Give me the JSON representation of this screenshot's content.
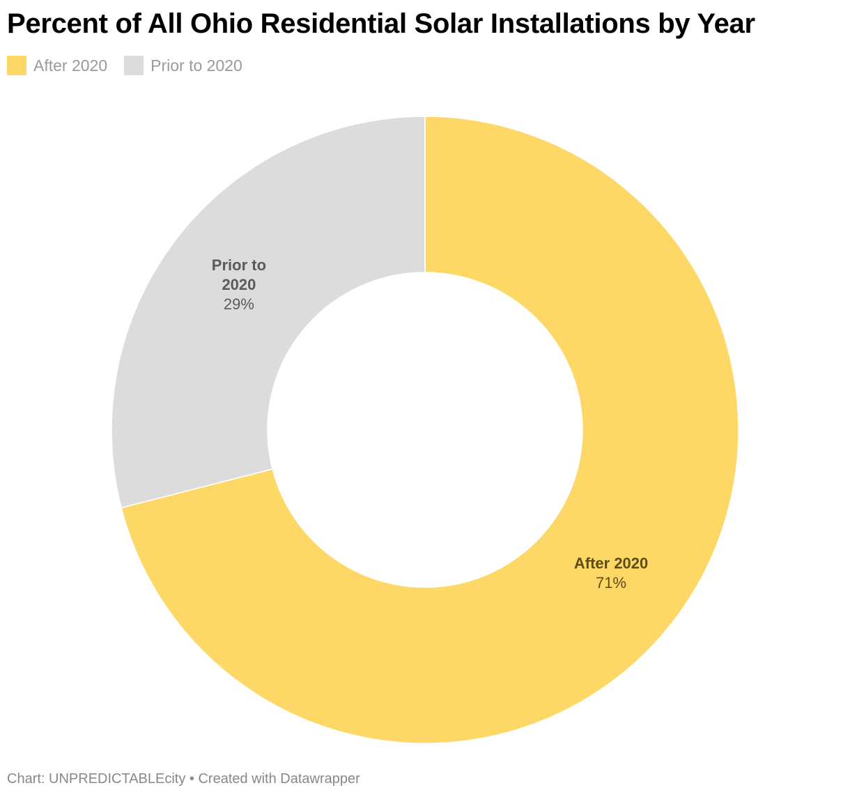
{
  "title": "Percent of All Ohio Residential Solar Installations by Year",
  "legend": [
    {
      "label": "After 2020",
      "color": "#fdd866"
    },
    {
      "label": "Prior to 2020",
      "color": "#dcdcdc"
    }
  ],
  "chart_data": {
    "type": "pie",
    "variant": "donut",
    "title": "Percent of All Ohio Residential Solar Installations by Year",
    "unit": "%",
    "slices": [
      {
        "label": "After 2020",
        "value": 71,
        "value_label": "71%",
        "label_lines": [
          "After 2020"
        ],
        "color": "#fdd866",
        "label_color": "#5e4c14"
      },
      {
        "label": "Prior to 2020",
        "value": 29,
        "value_label": "29%",
        "label_lines": [
          "Prior to",
          "2020"
        ],
        "color": "#dcdcdc",
        "label_color": "#5a5a5a"
      }
    ],
    "legend_position": "top-left"
  },
  "footer": "Chart: UNPREDICTABLEcity • Created with Datawrapper"
}
